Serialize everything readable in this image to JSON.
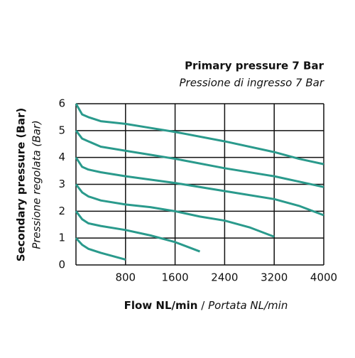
{
  "chart_data": {
    "type": "line",
    "title": "Primary pressure 7 Bar",
    "subtitle": "Pressione di ingresso 7 Bar",
    "ylabel": "Secondary pressure (Bar)",
    "ylabel_secondary": "Pressione regolata (Bar)",
    "xlabel": "Flow NL/min",
    "xlabel_separator": "/",
    "xlabel_secondary": "Portata NL/min",
    "xlim": [
      0,
      4000
    ],
    "xticks": [
      800,
      1600,
      2400,
      3200,
      4000
    ],
    "ylim": [
      0,
      6
    ],
    "yticks": [
      0,
      1,
      2,
      3,
      4,
      5,
      6
    ],
    "grid": true,
    "series": [
      {
        "color": "#2a9a8c",
        "x": [
          0,
          100,
          200,
          400,
          800,
          1200,
          1600,
          2400,
          3200,
          3600,
          4000
        ],
        "values": [
          6,
          5.6,
          5.5,
          5.35,
          5.25,
          5.1,
          4.95,
          4.6,
          4.2,
          3.95,
          3.75
        ]
      },
      {
        "color": "#2a9a8c",
        "x": [
          0,
          100,
          200,
          400,
          800,
          1200,
          1600,
          2400,
          3200,
          3600,
          4000
        ],
        "values": [
          5,
          4.7,
          4.6,
          4.4,
          4.25,
          4.1,
          3.95,
          3.6,
          3.3,
          3.1,
          2.9
        ]
      },
      {
        "color": "#2a9a8c",
        "x": [
          0,
          100,
          200,
          400,
          800,
          1600,
          2400,
          3200,
          3600,
          4000
        ],
        "values": [
          4,
          3.65,
          3.55,
          3.45,
          3.3,
          3.05,
          2.75,
          2.45,
          2.2,
          1.85
        ]
      },
      {
        "color": "#2a9a8c",
        "x": [
          0,
          100,
          200,
          400,
          800,
          1200,
          1600,
          2000,
          2400,
          2800,
          3200
        ],
        "values": [
          3,
          2.7,
          2.55,
          2.4,
          2.25,
          2.15,
          2.0,
          1.8,
          1.65,
          1.4,
          1.05
        ]
      },
      {
        "color": "#2a9a8c",
        "x": [
          0,
          100,
          200,
          400,
          800,
          1200,
          1600,
          2000
        ],
        "values": [
          2,
          1.7,
          1.55,
          1.45,
          1.3,
          1.1,
          0.85,
          0.5
        ]
      },
      {
        "color": "#2a9a8c",
        "x": [
          0,
          100,
          200,
          400,
          800
        ],
        "values": [
          1,
          0.75,
          0.6,
          0.45,
          0.2
        ]
      }
    ]
  }
}
